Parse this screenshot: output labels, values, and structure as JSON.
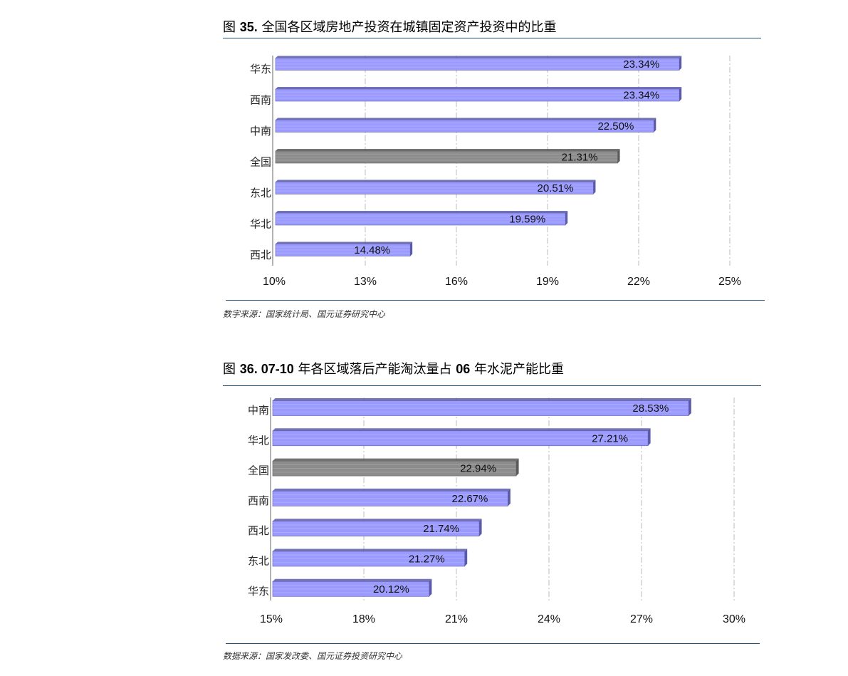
{
  "figures": [
    {
      "title_prefix": "图 ",
      "title_num": "35.",
      "title_text": "全国各区域房地产投资在城镇固定资产投资中的比重",
      "source": "数字来源：国家统计局、国元证券研究中心"
    },
    {
      "title_prefix": "图 ",
      "title_num": "36. 07-10",
      "title_text": " 年各区域落后产能淘汰量占 ",
      "title_num2": "06",
      "title_text2": " 年水泥产能比重",
      "source": "数据来源：国家发改委、国元证券投资研究中心"
    }
  ],
  "colors": {
    "bar": "#9b9bff",
    "bar_dark": "#5a5aa8",
    "highlight": "#8c8c8c",
    "highlight_dark": "#5a5a5a",
    "rule": "#1f4e79"
  },
  "chart_data": [
    {
      "type": "bar",
      "orientation": "horizontal",
      "categories": [
        "华东",
        "西南",
        "中南",
        "全国",
        "东北",
        "华北",
        "西北"
      ],
      "values": [
        23.34,
        23.34,
        22.5,
        21.31,
        20.51,
        19.59,
        14.48
      ],
      "labels": [
        "23.34%",
        "23.34%",
        "22.50%",
        "21.31%",
        "20.51%",
        "19.59%",
        "14.48%"
      ],
      "highlight": "全国",
      "xlim": [
        10,
        25
      ],
      "ticks": [
        10,
        13,
        16,
        19,
        22,
        25
      ],
      "tick_labels": [
        "10%",
        "13%",
        "16%",
        "19%",
        "22%",
        "25%"
      ],
      "grid": true
    },
    {
      "type": "bar",
      "orientation": "horizontal",
      "categories": [
        "中南",
        "华北",
        "全国",
        "西南",
        "西北",
        "东北",
        "华东"
      ],
      "values": [
        28.53,
        27.21,
        22.94,
        22.67,
        21.74,
        21.27,
        20.12
      ],
      "labels": [
        "28.53%",
        "27.21%",
        "22.94%",
        "22.67%",
        "21.74%",
        "21.27%",
        "20.12%"
      ],
      "highlight": "全国",
      "xlim": [
        15,
        30
      ],
      "ticks": [
        15,
        18,
        21,
        24,
        27,
        30
      ],
      "tick_labels": [
        "15%",
        "18%",
        "21%",
        "24%",
        "27%",
        "30%"
      ],
      "grid": true
    }
  ]
}
